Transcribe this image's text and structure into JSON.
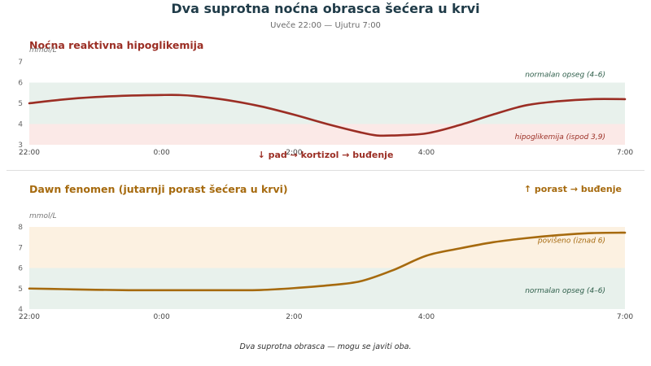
{
  "title": "Dva suprotna noćna obrasca šećera u krvi",
  "subtitle": "Uveče 22:00 — Ujutru 7:00",
  "footnote": "Dva suprotna obrasca — mogu se javiti oba.",
  "colors": {
    "title": "#1f3b48",
    "red": "#9b2e24",
    "amber": "#a66a0e",
    "band_normal": "#e8f1ec",
    "band_hypo": "#fbe9e7",
    "band_high": "#fcf1e1",
    "band_label_normal": "#2e5e4a"
  },
  "chart_data": [
    {
      "type": "line",
      "title": "Noćna reaktivna hipoglikemija",
      "annotation": "↓ pad → kortizol → buđenje",
      "ylabel": "mmol/L",
      "ylim": [
        3,
        7
      ],
      "yticks": [
        3,
        4,
        5,
        6,
        7
      ],
      "xlim": [
        0,
        9
      ],
      "xticks": [
        {
          "x": 0,
          "label": "22:00"
        },
        {
          "x": 2,
          "label": "0:00"
        },
        {
          "x": 4,
          "label": "2:00"
        },
        {
          "x": 6,
          "label": "4:00"
        },
        {
          "x": 9,
          "label": "7:00"
        }
      ],
      "bands": [
        {
          "from": 4,
          "to": 6,
          "color": "#e8f1ec",
          "label": "normalan opseg (4–6)",
          "label_color": "#2e5e4a"
        },
        {
          "from": 3,
          "to": 4,
          "color": "#fbe9e7",
          "label": "hipoglikemija (ispod 3,9)",
          "label_color": "#9b2e24"
        }
      ],
      "series": [
        {
          "color": "#9b2e24",
          "x": [
            0,
            0.5,
            1,
            1.5,
            2,
            2.25,
            2.5,
            3,
            3.5,
            4,
            4.5,
            5,
            5.25,
            5.5,
            6,
            6.5,
            7,
            7.5,
            8,
            8.5,
            9
          ],
          "y": [
            5.0,
            5.18,
            5.3,
            5.37,
            5.4,
            5.4,
            5.35,
            5.15,
            4.85,
            4.45,
            4.0,
            3.6,
            3.45,
            3.45,
            3.55,
            3.95,
            4.45,
            4.9,
            5.1,
            5.2,
            5.2
          ]
        }
      ]
    },
    {
      "type": "line",
      "title": "Dawn fenomen (jutarnji porast šećera u krvi)",
      "annotation": "↑ porast → buđenje",
      "ylabel": "mmol/L",
      "ylim": [
        4,
        8
      ],
      "yticks": [
        4,
        5,
        6,
        7,
        8
      ],
      "xlim": [
        0,
        9
      ],
      "xticks": [
        {
          "x": 0,
          "label": "22:00"
        },
        {
          "x": 2,
          "label": "0:00"
        },
        {
          "x": 4,
          "label": "2:00"
        },
        {
          "x": 6,
          "label": "4:00"
        },
        {
          "x": 9,
          "label": "7:00"
        }
      ],
      "bands": [
        {
          "from": 6,
          "to": 8,
          "color": "#fcf1e1",
          "label": "povišeno (iznad 6)",
          "label_color": "#a66a0e"
        },
        {
          "from": 4,
          "to": 6,
          "color": "#e8f1ec",
          "label": "normalan opseg (4–6)",
          "label_color": "#2e5e4a"
        }
      ],
      "series": [
        {
          "color": "#a66a0e",
          "x": [
            0,
            0.5,
            1,
            1.5,
            2,
            2.5,
            3,
            3.5,
            4,
            4.5,
            5,
            5.5,
            6,
            6.5,
            7,
            7.5,
            8,
            8.5,
            9
          ],
          "y": [
            5.0,
            4.97,
            4.94,
            4.92,
            4.92,
            4.92,
            4.92,
            4.93,
            5.02,
            5.15,
            5.35,
            5.9,
            6.6,
            6.95,
            7.25,
            7.45,
            7.6,
            7.7,
            7.72
          ]
        }
      ]
    }
  ]
}
